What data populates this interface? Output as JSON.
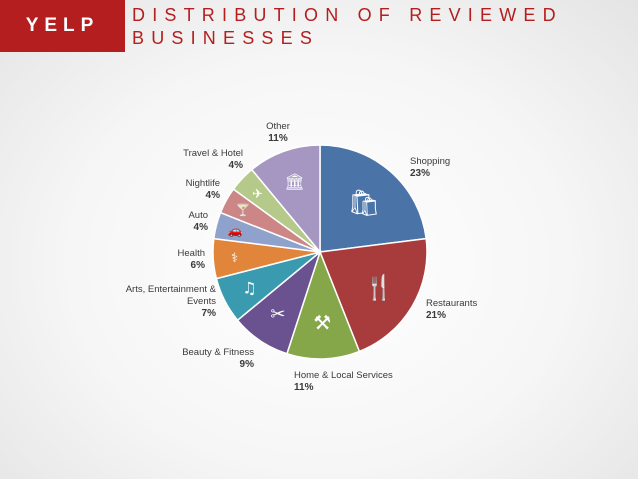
{
  "header": {
    "brand": "YELP",
    "title_line1": "DISTRIBUTION OF REVIEWED",
    "title_line2": "BUSINESSES"
  },
  "colors": {
    "brand_red": "#b41e1e"
  },
  "chart_data": {
    "type": "pie",
    "title": "DISTRIBUTION OF REVIEWED BUSINESSES",
    "slices": [
      {
        "label": "Shopping",
        "value": 23,
        "pct_label": "23%",
        "color": "#4a74a8",
        "icon": "shopping-bag-icon"
      },
      {
        "label": "Restaurants",
        "value": 21,
        "pct_label": "21%",
        "color": "#a83c3c",
        "icon": "fork-knife-icon"
      },
      {
        "label": "Home & Local Services",
        "value": 11,
        "pct_label": "11%",
        "color": "#86a64a",
        "icon": "tools-icon"
      },
      {
        "label": "Beauty & Fitness",
        "value": 9,
        "pct_label": "9%",
        "color": "#6a5190",
        "icon": "scissors-icon"
      },
      {
        "label": "Arts, Entertainment & Events",
        "value": 7,
        "pct_label": "7%",
        "color": "#3a9bb0",
        "icon": "music-icon"
      },
      {
        "label": "Health",
        "value": 6,
        "pct_label": "6%",
        "color": "#e0853a",
        "icon": "caduceus-icon"
      },
      {
        "label": "Auto",
        "value": 4,
        "pct_label": "4%",
        "color": "#8ea2cc",
        "icon": "car-icon"
      },
      {
        "label": "Nightlife",
        "value": 4,
        "pct_label": "4%",
        "color": "#cc8686",
        "icon": "cocktail-icon"
      },
      {
        "label": "Travel & Hotel",
        "value": 4,
        "pct_label": "4%",
        "color": "#b4c98a",
        "icon": "airplane-icon"
      },
      {
        "label": "Other",
        "value": 11,
        "pct_label": "11%",
        "color": "#a597c2",
        "icon": "other-icons"
      }
    ]
  }
}
